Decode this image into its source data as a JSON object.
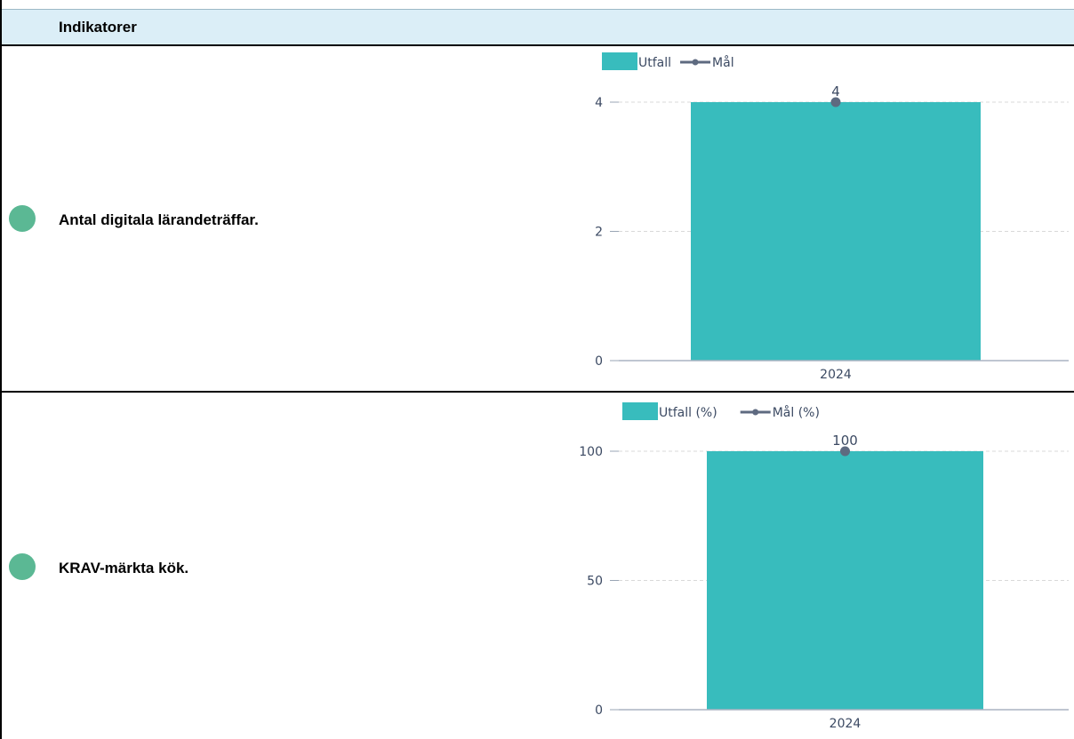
{
  "header": {
    "title": "Indikatorer"
  },
  "colors": {
    "bar": "#38bcbd",
    "target": "#5e6a80",
    "status_green": "#5bb894",
    "header_bg": "#dbeef7"
  },
  "rows": [
    {
      "status_icon": "green-circle-icon",
      "label": "Antal digitala lärandeträffar."
    },
    {
      "status_icon": "green-circle-icon",
      "label": "KRAV-märkta kök."
    }
  ],
  "chart_data": [
    {
      "type": "bar",
      "categories": [
        "2024"
      ],
      "series": [
        {
          "name": "Utfall",
          "kind": "bar",
          "values": [
            4
          ]
        },
        {
          "name": "Mål",
          "kind": "line",
          "values": [
            4
          ]
        }
      ],
      "data_labels": [
        "4"
      ],
      "y_ticks": [
        0,
        2,
        4
      ],
      "ylim": [
        0,
        4
      ],
      "grid": true,
      "legend": "top-left"
    },
    {
      "type": "bar",
      "categories": [
        "2024"
      ],
      "series": [
        {
          "name": "Utfall (%)",
          "kind": "bar",
          "values": [
            100
          ]
        },
        {
          "name": "Mål (%)",
          "kind": "line",
          "values": [
            100
          ]
        }
      ],
      "data_labels": [
        "100"
      ],
      "y_ticks": [
        0,
        50,
        100
      ],
      "ylim": [
        0,
        100
      ],
      "grid": true,
      "legend": "top-left"
    }
  ]
}
